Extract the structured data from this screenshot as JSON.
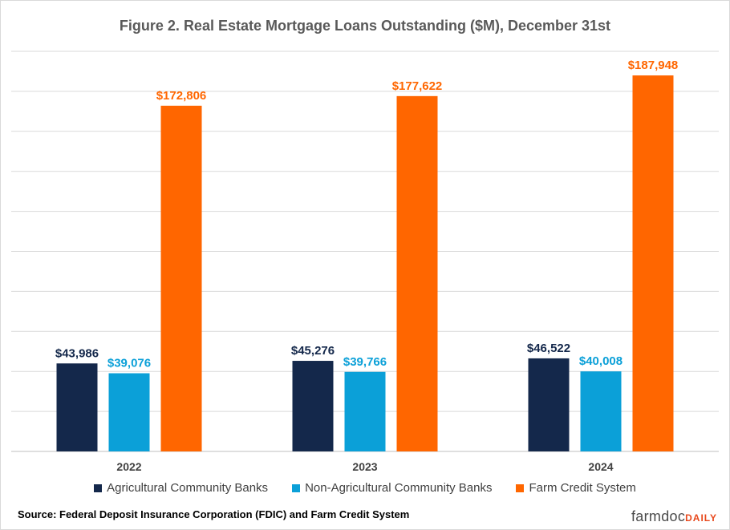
{
  "chart_data": {
    "type": "bar",
    "title": "Figure 2. Real Estate Mortgage Loans Outstanding ($M), December 31st",
    "categories": [
      "2022",
      "2023",
      "2024"
    ],
    "series": [
      {
        "name": "Agricultural Community Banks",
        "values": [
          43986,
          45276,
          46522
        ],
        "labels": [
          "$43,986",
          "$45,276",
          "$46,522"
        ],
        "color": "#14284b"
      },
      {
        "name": "Non-Agricultural Community Banks",
        "values": [
          39076,
          39766,
          40008
        ],
        "labels": [
          "$39,076",
          "$39,766",
          "$40,008"
        ],
        "color": "#0ba0d8"
      },
      {
        "name": "Farm Credit System",
        "values": [
          172806,
          177622,
          187948
        ],
        "labels": [
          "$172,806",
          "$177,622",
          "$187,948"
        ],
        "color": "#ff6600"
      }
    ],
    "ylim": [
      0,
      200000
    ],
    "grid": true,
    "legend_position": "bottom"
  },
  "source": "Source: Federal Deposit Insurance Corporation (FDIC) and Farm Credit System",
  "logo": {
    "part1": "farmdoc",
    "part2": "DAILY"
  }
}
